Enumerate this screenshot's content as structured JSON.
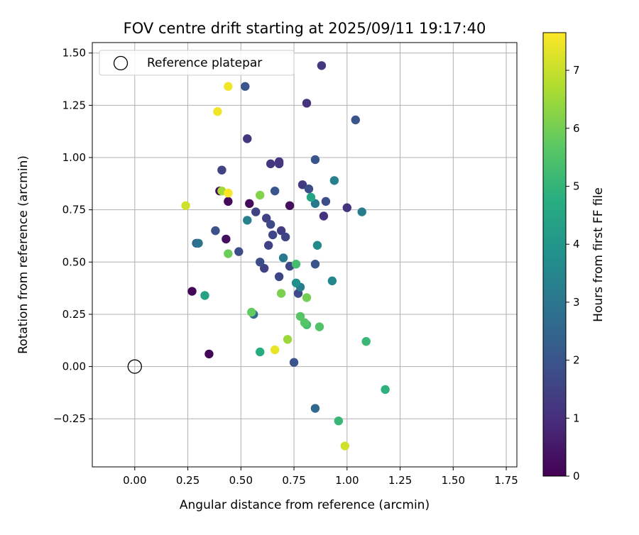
{
  "chart_data": {
    "type": "scatter",
    "title": "FOV centre drift starting at 2025/09/11 19:17:40",
    "xlabel": "Angular distance from reference (arcmin)",
    "ylabel": "Rotation from reference (arcmin)",
    "xlim": [
      -0.2,
      1.8
    ],
    "ylim": [
      -0.48,
      1.55
    ],
    "xticks": [
      0.0,
      0.25,
      0.5,
      0.75,
      1.0,
      1.25,
      1.5,
      1.75
    ],
    "xtick_labels": [
      "0.00",
      "0.25",
      "0.50",
      "0.75",
      "1.00",
      "1.25",
      "1.50",
      "1.75"
    ],
    "yticks": [
      -0.25,
      0.0,
      0.25,
      0.5,
      0.75,
      1.0,
      1.25,
      1.5
    ],
    "ytick_labels": [
      "−0.25",
      "0.00",
      "0.25",
      "0.50",
      "0.75",
      "1.00",
      "1.25",
      "1.50"
    ],
    "grid": true,
    "legend": {
      "label": "Reference platepar",
      "location": "upper-left"
    },
    "reference_point": {
      "x": 0.0,
      "y": 0.0
    },
    "colorbar": {
      "label": "Hours from first FF file",
      "range": [
        0,
        7.65
      ],
      "ticks": [
        0,
        1,
        2,
        3,
        4,
        5,
        6,
        7
      ],
      "tick_labels": [
        "0",
        "1",
        "2",
        "3",
        "4",
        "5",
        "6",
        "7"
      ],
      "colormap": "viridis"
    },
    "points": [
      {
        "x": 0.35,
        "y": 0.06,
        "h": 0.1
      },
      {
        "x": 0.27,
        "y": 0.36,
        "h": 0.1
      },
      {
        "x": 0.4,
        "y": 0.84,
        "h": 0.2
      },
      {
        "x": 0.44,
        "y": 0.79,
        "h": 0.2
      },
      {
        "x": 0.43,
        "y": 0.61,
        "h": 0.3
      },
      {
        "x": 0.54,
        "y": 0.78,
        "h": 0.2
      },
      {
        "x": 0.73,
        "y": 0.77,
        "h": 0.3
      },
      {
        "x": 1.0,
        "y": 0.76,
        "h": 1.1
      },
      {
        "x": 0.89,
        "y": 0.72,
        "h": 1.1
      },
      {
        "x": 0.53,
        "y": 1.09,
        "h": 1.2
      },
      {
        "x": 0.64,
        "y": 0.97,
        "h": 1.2
      },
      {
        "x": 0.68,
        "y": 0.98,
        "h": 1.2
      },
      {
        "x": 0.68,
        "y": 0.97,
        "h": 1.2
      },
      {
        "x": 0.79,
        "y": 0.87,
        "h": 1.3
      },
      {
        "x": 0.81,
        "y": 1.26,
        "h": 1.1
      },
      {
        "x": 0.88,
        "y": 1.44,
        "h": 1.2
      },
      {
        "x": 0.41,
        "y": 0.94,
        "h": 1.5
      },
      {
        "x": 0.57,
        "y": 0.74,
        "h": 1.5
      },
      {
        "x": 0.62,
        "y": 0.71,
        "h": 1.5
      },
      {
        "x": 0.65,
        "y": 0.63,
        "h": 1.6
      },
      {
        "x": 0.71,
        "y": 0.62,
        "h": 1.6
      },
      {
        "x": 0.69,
        "y": 0.65,
        "h": 1.4
      },
      {
        "x": 0.63,
        "y": 0.58,
        "h": 1.5
      },
      {
        "x": 0.61,
        "y": 0.47,
        "h": 1.5
      },
      {
        "x": 0.68,
        "y": 0.43,
        "h": 1.6
      },
      {
        "x": 0.73,
        "y": 0.48,
        "h": 1.6
      },
      {
        "x": 0.77,
        "y": 0.35,
        "h": 1.7
      },
      {
        "x": 0.49,
        "y": 0.55,
        "h": 1.8
      },
      {
        "x": 0.59,
        "y": 0.5,
        "h": 1.8
      },
      {
        "x": 0.64,
        "y": 0.68,
        "h": 1.7
      },
      {
        "x": 0.9,
        "y": 0.79,
        "h": 1.8
      },
      {
        "x": 0.82,
        "y": 0.85,
        "h": 1.8
      },
      {
        "x": 0.38,
        "y": 0.65,
        "h": 1.9
      },
      {
        "x": 0.52,
        "y": 1.34,
        "h": 2.0
      },
      {
        "x": 1.04,
        "y": 1.18,
        "h": 2.0
      },
      {
        "x": 0.85,
        "y": 0.99,
        "h": 2.0
      },
      {
        "x": 0.66,
        "y": 0.84,
        "h": 2.0
      },
      {
        "x": 0.85,
        "y": 0.49,
        "h": 2.0
      },
      {
        "x": 0.75,
        "y": 0.02,
        "h": 2.0
      },
      {
        "x": 0.85,
        "y": -0.2,
        "h": 2.6
      },
      {
        "x": 0.56,
        "y": 0.25,
        "h": 2.7
      },
      {
        "x": 0.29,
        "y": 0.59,
        "h": 2.6
      },
      {
        "x": 0.3,
        "y": 0.59,
        "h": 2.9
      },
      {
        "x": 0.7,
        "y": 0.52,
        "h": 3.1
      },
      {
        "x": 0.78,
        "y": 0.38,
        "h": 3.2
      },
      {
        "x": 0.85,
        "y": 0.78,
        "h": 3.1
      },
      {
        "x": 0.94,
        "y": 0.89,
        "h": 3.3
      },
      {
        "x": 1.07,
        "y": 0.74,
        "h": 3.2
      },
      {
        "x": 0.53,
        "y": 0.7,
        "h": 3.3
      },
      {
        "x": 0.93,
        "y": 0.41,
        "h": 3.5
      },
      {
        "x": 0.86,
        "y": 0.58,
        "h": 3.6
      },
      {
        "x": 0.76,
        "y": 0.4,
        "h": 3.8
      },
      {
        "x": 0.33,
        "y": 0.34,
        "h": 4.4
      },
      {
        "x": 0.83,
        "y": 0.81,
        "h": 4.5
      },
      {
        "x": 0.59,
        "y": 0.07,
        "h": 4.7
      },
      {
        "x": 1.18,
        "y": -0.11,
        "h": 4.9
      },
      {
        "x": 0.96,
        "y": -0.26,
        "h": 5.1
      },
      {
        "x": 1.09,
        "y": 0.12,
        "h": 5.1
      },
      {
        "x": 0.76,
        "y": 0.49,
        "h": 5.3
      },
      {
        "x": 0.81,
        "y": 0.2,
        "h": 5.3
      },
      {
        "x": 0.87,
        "y": 0.19,
        "h": 5.5
      },
      {
        "x": 0.78,
        "y": 0.24,
        "h": 5.6
      },
      {
        "x": 0.8,
        "y": 0.21,
        "h": 5.6
      },
      {
        "x": 0.44,
        "y": 0.54,
        "h": 5.9
      },
      {
        "x": 0.55,
        "y": 0.26,
        "h": 5.8
      },
      {
        "x": 0.59,
        "y": 0.82,
        "h": 6.2
      },
      {
        "x": 0.69,
        "y": 0.35,
        "h": 6.1
      },
      {
        "x": 0.81,
        "y": 0.33,
        "h": 6.0
      },
      {
        "x": 0.72,
        "y": 0.13,
        "h": 6.5
      },
      {
        "x": 0.41,
        "y": 0.84,
        "h": 6.6
      },
      {
        "x": 0.24,
        "y": 0.77,
        "h": 7.1
      },
      {
        "x": 0.99,
        "y": -0.38,
        "h": 7.1
      },
      {
        "x": 0.66,
        "y": 0.08,
        "h": 7.4
      },
      {
        "x": 0.39,
        "y": 1.22,
        "h": 7.5
      },
      {
        "x": 0.44,
        "y": 1.34,
        "h": 7.5
      },
      {
        "x": 0.44,
        "y": 0.83,
        "h": 7.6
      }
    ]
  }
}
